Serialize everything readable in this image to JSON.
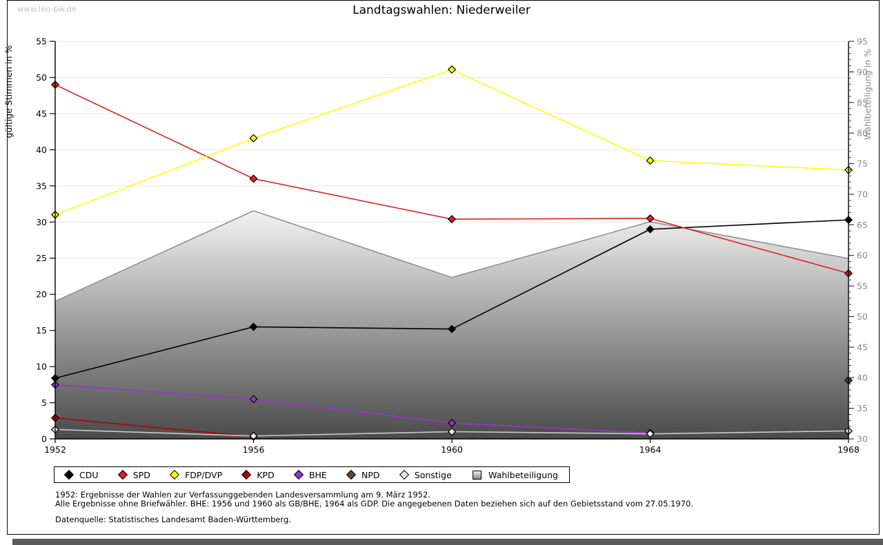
{
  "watermark": "www.leo-bw.de",
  "footnotes": {
    "line1": "1952: Ergebnisse der Wahlen zur Verfassunggebenden Landesversammlung am 9. März 1952.",
    "line2": "Alle Ergebnisse ohne Briefwähler. BHE: 1956 und 1960 als GB/BHE, 1964 als GDP. Die angegebenen Daten beziehen sich auf den Gebietsstand vom 27.05.1970.",
    "source": "Datenquelle: Statistisches Landesamt Baden-Württemberg."
  },
  "chart_data": {
    "type": "line",
    "title": "Landtagswahlen: Niederweiler",
    "x": [
      1952,
      1956,
      1960,
      1964,
      1968
    ],
    "left_axis": {
      "label": "gültige Stimmen in %",
      "min": 0,
      "max": 55,
      "tick_step": 5
    },
    "right_axis": {
      "label": "Wahlbeteiligung in %",
      "min": 30,
      "max": 95,
      "tick_step": 5,
      "minor_tick_step": 1
    },
    "grid": "horizontal",
    "legend_position": "bottom",
    "series": [
      {
        "name": "CDU",
        "color": "#000000",
        "marker_fill": "#000000",
        "axis": "left",
        "values": [
          8.4,
          15.5,
          15.2,
          29.0,
          30.3
        ]
      },
      {
        "name": "SPD",
        "color": "#e02020",
        "marker_fill": "#e02020",
        "axis": "left",
        "values": [
          49.0,
          36.0,
          30.4,
          30.5,
          22.9
        ]
      },
      {
        "name": "FDP/DVP",
        "color": "#ffff00",
        "marker_fill": "#ffff00",
        "axis": "left",
        "values": [
          31.0,
          41.6,
          51.1,
          38.5,
          37.2
        ]
      },
      {
        "name": "KPD",
        "color": "#b00000",
        "marker_fill": "#b00000",
        "axis": "left",
        "values": [
          2.9,
          0.3,
          null,
          null,
          null
        ]
      },
      {
        "name": "BHE",
        "color": "#9933cc",
        "marker_fill": "#9933cc",
        "axis": "left",
        "values": [
          7.5,
          5.5,
          2.2,
          0.8,
          null
        ]
      },
      {
        "name": "NPD",
        "color": "#6b4226",
        "marker_fill": "#6b4226",
        "axis": "left",
        "values": [
          null,
          null,
          null,
          null,
          8.1
        ]
      },
      {
        "name": "Sonstige",
        "color": "#c9c9c9",
        "marker_fill": "#ebebeb",
        "axis": "left",
        "values": [
          1.3,
          0.4,
          1.0,
          0.7,
          1.1
        ]
      }
    ],
    "participation": {
      "name": "Wahlbeteiligung",
      "axis": "right",
      "type": "area",
      "values": [
        52.5,
        67.3,
        56.4,
        65.5,
        59.5
      ],
      "fill_top": "#f2f2f2",
      "fill_bottom": "#4a4a4a",
      "edge_color": "#8c8c8c"
    }
  }
}
